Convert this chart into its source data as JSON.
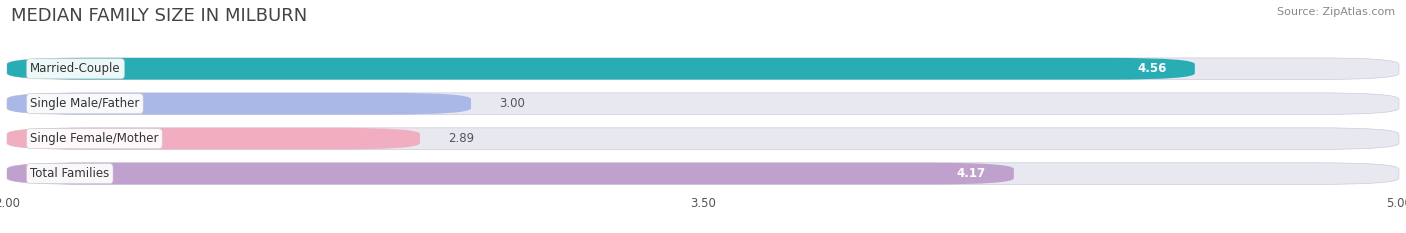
{
  "title": "MEDIAN FAMILY SIZE IN MILBURN",
  "source": "Source: ZipAtlas.com",
  "categories": [
    "Married-Couple",
    "Single Male/Father",
    "Single Female/Mother",
    "Total Families"
  ],
  "values": [
    4.56,
    3.0,
    2.89,
    4.17
  ],
  "bar_colors": [
    "#29adb5",
    "#aab8e8",
    "#f0aec0",
    "#c0a0cc"
  ],
  "label_colors": [
    "white",
    "#555555",
    "#555555",
    "white"
  ],
  "x_min": 2.0,
  "x_max": 5.0,
  "x_ticks": [
    2.0,
    3.5,
    5.0
  ],
  "bar_height": 0.62,
  "background_color": "#ffffff",
  "bar_bg_color": "#e8e8f0",
  "title_fontsize": 13,
  "label_fontsize": 8.5,
  "value_fontsize": 8.5,
  "source_fontsize": 8
}
